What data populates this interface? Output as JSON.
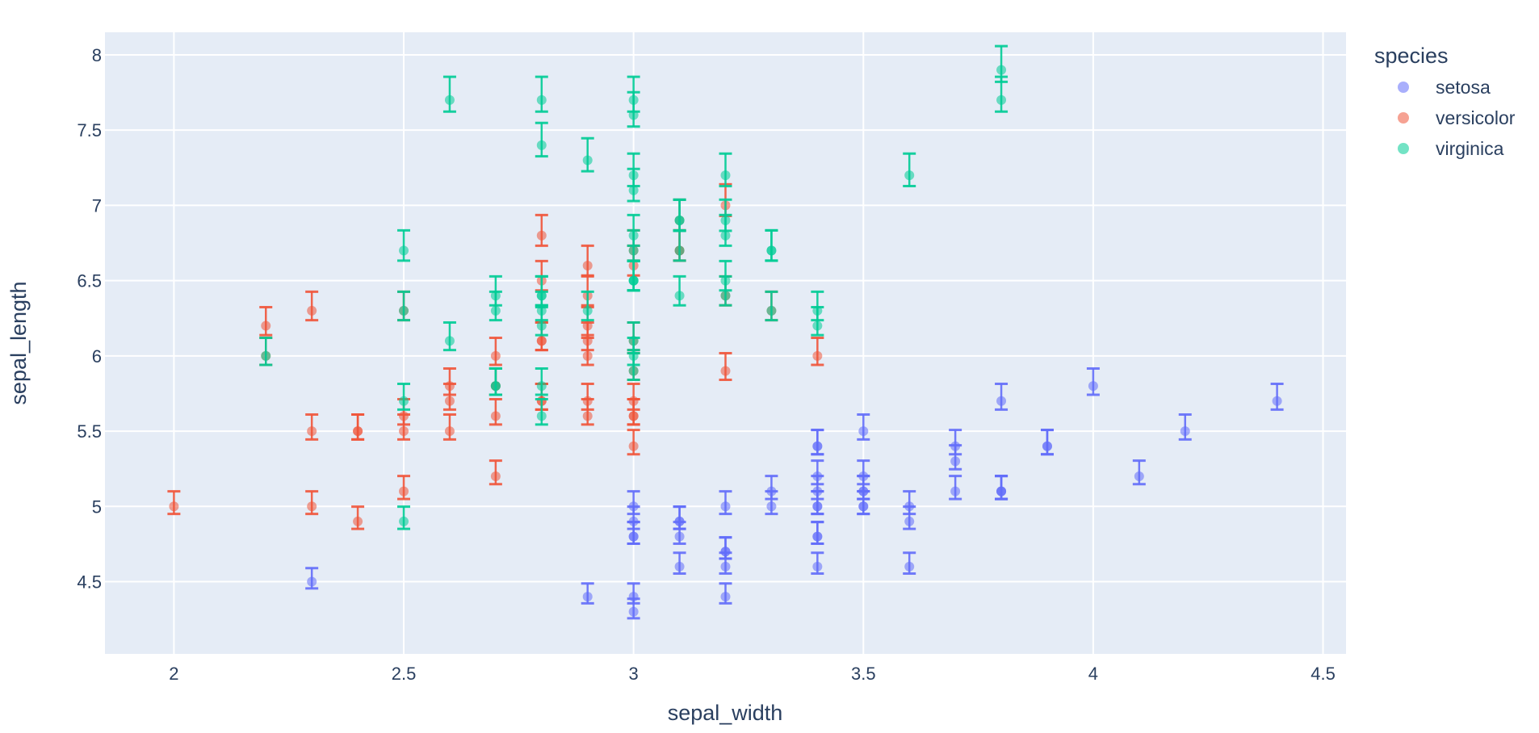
{
  "chart_data": {
    "type": "scatter",
    "title": "",
    "xlabel": "sepal_width",
    "ylabel": "sepal_length",
    "xlim": [
      1.85,
      4.55
    ],
    "ylim": [
      4.02,
      8.15
    ],
    "x_ticks": [
      2,
      2.5,
      3,
      3.5,
      4,
      4.5
    ],
    "x_tick_labels": [
      "2",
      "2.5",
      "3",
      "3.5",
      "4",
      "4.5"
    ],
    "y_ticks": [
      4.5,
      5,
      5.5,
      6,
      6.5,
      7,
      7.5,
      8
    ],
    "y_tick_labels": [
      "4.5",
      "5",
      "5.5",
      "6",
      "6.5",
      "7",
      "7.5",
      "8"
    ],
    "grid": true,
    "legend": {
      "title": "species",
      "placement": "right"
    },
    "error_y": {
      "plus_fraction": 0.02,
      "minus_fraction": 0.01
    },
    "series": [
      {
        "name": "setosa",
        "color": "#636efa",
        "points": [
          [
            3.5,
            5.1
          ],
          [
            3.0,
            4.9
          ],
          [
            3.2,
            4.7
          ],
          [
            3.1,
            4.6
          ],
          [
            3.6,
            5.0
          ],
          [
            3.9,
            5.4
          ],
          [
            3.4,
            4.6
          ],
          [
            3.4,
            5.0
          ],
          [
            2.9,
            4.4
          ],
          [
            3.1,
            4.9
          ],
          [
            3.7,
            5.4
          ],
          [
            3.4,
            4.8
          ],
          [
            3.0,
            4.8
          ],
          [
            3.0,
            4.3
          ],
          [
            4.0,
            5.8
          ],
          [
            4.4,
            5.7
          ],
          [
            3.9,
            5.4
          ],
          [
            3.5,
            5.1
          ],
          [
            3.8,
            5.7
          ],
          [
            3.8,
            5.1
          ],
          [
            3.4,
            5.4
          ],
          [
            3.7,
            5.1
          ],
          [
            3.6,
            4.6
          ],
          [
            3.3,
            5.1
          ],
          [
            3.4,
            4.8
          ],
          [
            3.0,
            5.0
          ],
          [
            3.4,
            5.0
          ],
          [
            3.5,
            5.2
          ],
          [
            3.4,
            5.2
          ],
          [
            3.2,
            4.7
          ],
          [
            3.1,
            4.8
          ],
          [
            3.4,
            5.4
          ],
          [
            4.1,
            5.2
          ],
          [
            4.2,
            5.5
          ],
          [
            3.1,
            4.9
          ],
          [
            3.2,
            5.0
          ],
          [
            3.5,
            5.5
          ],
          [
            3.6,
            4.9
          ],
          [
            3.0,
            4.4
          ],
          [
            3.4,
            5.1
          ],
          [
            3.5,
            5.0
          ],
          [
            2.3,
            4.5
          ],
          [
            3.2,
            4.4
          ],
          [
            3.5,
            5.0
          ],
          [
            3.8,
            5.1
          ],
          [
            3.0,
            4.8
          ],
          [
            3.8,
            5.1
          ],
          [
            3.2,
            4.6
          ],
          [
            3.7,
            5.3
          ],
          [
            3.3,
            5.0
          ]
        ]
      },
      {
        "name": "versicolor",
        "color": "#ef553b",
        "points": [
          [
            3.2,
            7.0
          ],
          [
            3.2,
            6.4
          ],
          [
            3.1,
            6.9
          ],
          [
            2.3,
            5.5
          ],
          [
            2.8,
            6.5
          ],
          [
            2.8,
            5.7
          ],
          [
            3.3,
            6.3
          ],
          [
            2.4,
            4.9
          ],
          [
            2.9,
            6.6
          ],
          [
            2.7,
            5.2
          ],
          [
            2.0,
            5.0
          ],
          [
            3.0,
            5.9
          ],
          [
            2.2,
            6.0
          ],
          [
            2.9,
            6.1
          ],
          [
            2.9,
            5.6
          ],
          [
            3.1,
            6.7
          ],
          [
            3.0,
            5.6
          ],
          [
            2.7,
            5.8
          ],
          [
            2.2,
            6.2
          ],
          [
            2.5,
            5.6
          ],
          [
            3.2,
            5.9
          ],
          [
            2.8,
            6.1
          ],
          [
            2.5,
            6.3
          ],
          [
            2.8,
            6.1
          ],
          [
            2.9,
            6.4
          ],
          [
            3.0,
            6.6
          ],
          [
            2.8,
            6.8
          ],
          [
            3.0,
            6.7
          ],
          [
            2.9,
            6.0
          ],
          [
            2.6,
            5.7
          ],
          [
            2.4,
            5.5
          ],
          [
            2.4,
            5.5
          ],
          [
            2.7,
            5.8
          ],
          [
            2.7,
            6.0
          ],
          [
            3.0,
            5.4
          ],
          [
            3.4,
            6.0
          ],
          [
            3.1,
            6.7
          ],
          [
            2.3,
            6.3
          ],
          [
            3.0,
            5.6
          ],
          [
            2.5,
            5.5
          ],
          [
            2.6,
            5.5
          ],
          [
            3.0,
            6.1
          ],
          [
            2.6,
            5.8
          ],
          [
            2.3,
            5.0
          ],
          [
            2.7,
            5.6
          ],
          [
            3.0,
            5.7
          ],
          [
            2.9,
            5.7
          ],
          [
            2.9,
            6.2
          ],
          [
            2.5,
            5.1
          ],
          [
            2.8,
            5.7
          ]
        ]
      },
      {
        "name": "virginica",
        "color": "#00cc96",
        "points": [
          [
            3.3,
            6.3
          ],
          [
            2.7,
            5.8
          ],
          [
            3.0,
            7.1
          ],
          [
            2.9,
            6.3
          ],
          [
            3.0,
            6.5
          ],
          [
            3.0,
            7.6
          ],
          [
            2.5,
            4.9
          ],
          [
            2.9,
            7.3
          ],
          [
            2.5,
            6.7
          ],
          [
            3.6,
            7.2
          ],
          [
            3.2,
            6.5
          ],
          [
            2.7,
            6.4
          ],
          [
            3.0,
            6.8
          ],
          [
            2.5,
            5.7
          ],
          [
            2.8,
            5.8
          ],
          [
            3.2,
            6.4
          ],
          [
            3.0,
            6.5
          ],
          [
            3.8,
            7.7
          ],
          [
            2.6,
            7.7
          ],
          [
            2.2,
            6.0
          ],
          [
            3.2,
            6.9
          ],
          [
            2.8,
            5.6
          ],
          [
            2.8,
            7.7
          ],
          [
            2.7,
            6.3
          ],
          [
            3.3,
            6.7
          ],
          [
            3.2,
            7.2
          ],
          [
            2.8,
            6.2
          ],
          [
            3.0,
            6.1
          ],
          [
            2.8,
            6.4
          ],
          [
            3.0,
            7.2
          ],
          [
            2.8,
            7.4
          ],
          [
            3.8,
            7.9
          ],
          [
            2.8,
            6.4
          ],
          [
            2.8,
            6.3
          ],
          [
            2.6,
            6.1
          ],
          [
            3.0,
            7.7
          ],
          [
            3.4,
            6.3
          ],
          [
            3.1,
            6.4
          ],
          [
            3.0,
            6.0
          ],
          [
            3.1,
            6.9
          ],
          [
            3.1,
            6.7
          ],
          [
            3.1,
            6.9
          ],
          [
            2.7,
            5.8
          ],
          [
            3.2,
            6.8
          ],
          [
            3.3,
            6.7
          ],
          [
            3.0,
            6.7
          ],
          [
            2.5,
            6.3
          ],
          [
            3.0,
            6.5
          ],
          [
            3.4,
            6.2
          ],
          [
            3.0,
            5.9
          ]
        ]
      }
    ]
  }
}
